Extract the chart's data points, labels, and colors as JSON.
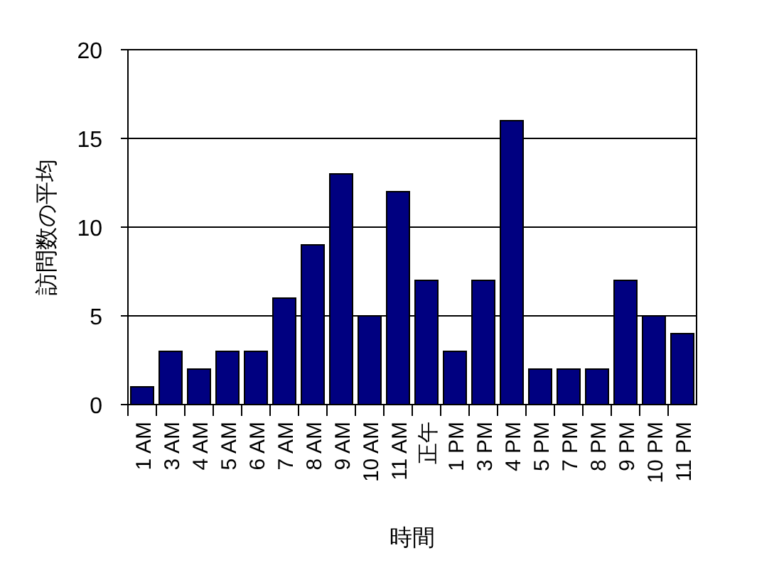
{
  "chart_data": {
    "type": "bar",
    "xlabel": "時間",
    "ylabel": "訪問数の平均",
    "categories": [
      "1 AM",
      "3 AM",
      "4 AM",
      "5 AM",
      "6 AM",
      "7 AM",
      "8 AM",
      "9 AM",
      "10 AM",
      "11 AM",
      "正午",
      "1 PM",
      "3 PM",
      "4 PM",
      "5 PM",
      "7 PM",
      "8 PM",
      "9 PM",
      "10 PM",
      "11 PM"
    ],
    "values": [
      1,
      3,
      2,
      3,
      3,
      6,
      9,
      13,
      5,
      12,
      7,
      3,
      7,
      16,
      2,
      2,
      2,
      7,
      5,
      4
    ],
    "color": "#000080",
    "ylim": [
      0,
      20
    ],
    "yticks": [
      0,
      5,
      10,
      15,
      20
    ],
    "grid": "y"
  }
}
